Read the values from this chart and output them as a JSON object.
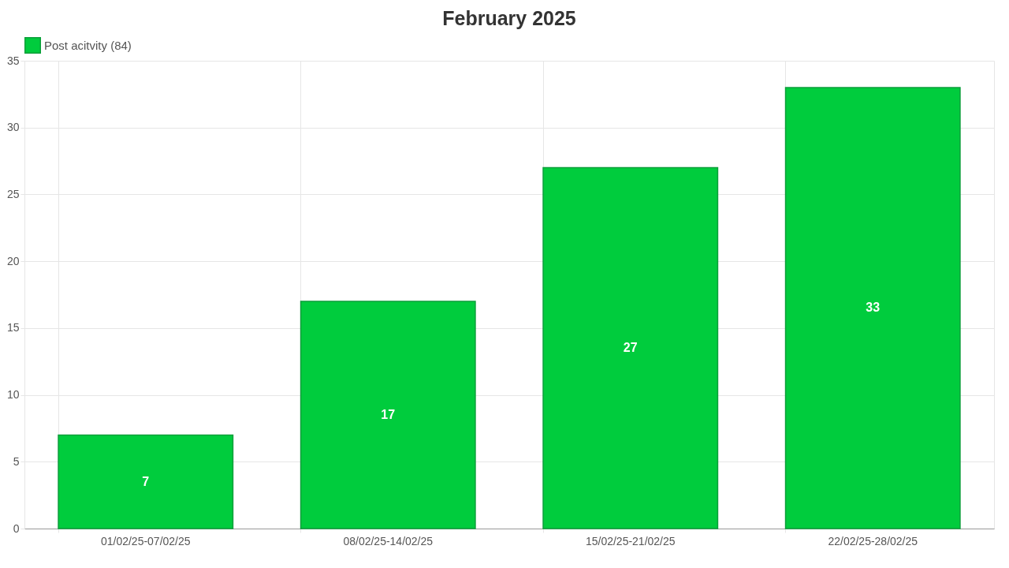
{
  "chart_data": {
    "type": "bar",
    "title": "February 2025",
    "categories": [
      "01/02/25-07/02/25",
      "08/02/25-14/02/25",
      "15/02/25-21/02/25",
      "22/02/25-28/02/25"
    ],
    "series": [
      {
        "name": "Post acitvity (84)",
        "color": "#00cc3d",
        "values": [
          7,
          17,
          27,
          33
        ]
      }
    ],
    "ylim": [
      0,
      35
    ],
    "yticks": [
      0,
      5,
      10,
      15,
      20,
      25,
      30,
      35
    ],
    "grid": true,
    "legend": "top",
    "data_labels": true
  }
}
